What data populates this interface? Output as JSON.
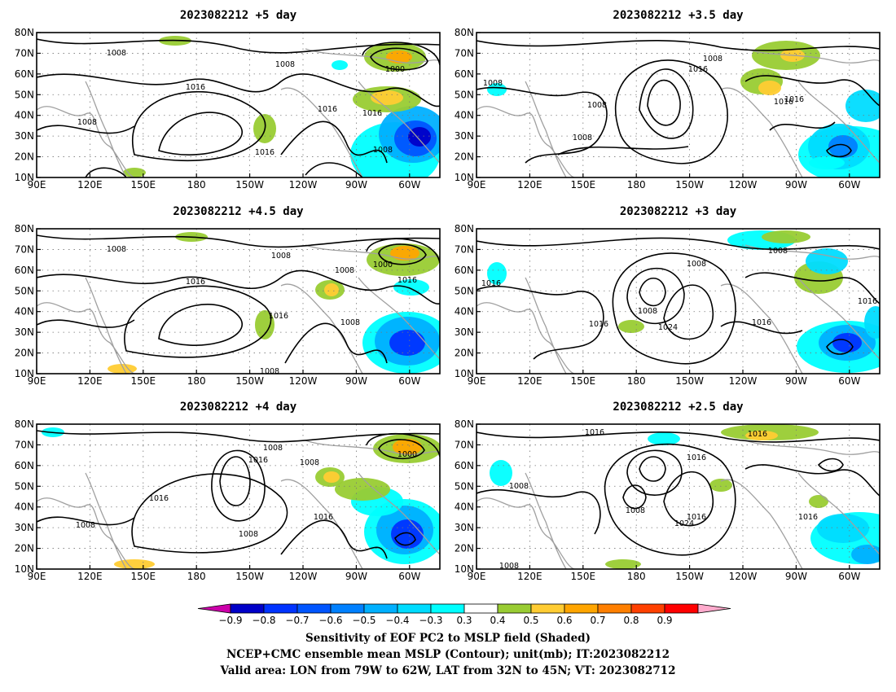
{
  "panels": [
    {
      "title": "2023082212 +5 day",
      "contour_labels": [
        "1008",
        "1008",
        "1016",
        "1000",
        "1016",
        "1016",
        "1008",
        "1016",
        "1008"
      ]
    },
    {
      "title": "2023082212 +3.5 day",
      "contour_labels": [
        "1008",
        "1008",
        "1016",
        "1016",
        "1008",
        "1008",
        "1016"
      ]
    },
    {
      "title": "2023082212 +4.5 day",
      "contour_labels": [
        "1008",
        "1008",
        "1016",
        "1008",
        "1000",
        "1016",
        "1016",
        "1008",
        "1008"
      ]
    },
    {
      "title": "2023082212 +3 day",
      "contour_labels": [
        "1008",
        "1016",
        "1008",
        "1008",
        "1016",
        "1024",
        "1016",
        "1016"
      ]
    },
    {
      "title": "2023082212 +4 day",
      "contour_labels": [
        "1008",
        "1016",
        "1008",
        "1016",
        "1008",
        "1000",
        "1016",
        "1008"
      ]
    },
    {
      "title": "2023082212 +2.5 day",
      "contour_labels": [
        "1016",
        "1008",
        "1016",
        "1016",
        "1008",
        "1024",
        "1016",
        "1016",
        "1008"
      ]
    }
  ],
  "y_ticks": [
    "80N",
    "70N",
    "60N",
    "50N",
    "40N",
    "30N",
    "20N",
    "10N"
  ],
  "x_ticks": [
    "90E",
    "120E",
    "150E",
    "180",
    "150W",
    "120W",
    "90W",
    "60W"
  ],
  "colorbar": {
    "labels": [
      "−0.9",
      "−0.8",
      "−0.7",
      "−0.6",
      "−0.5",
      "−0.4",
      "−0.3",
      "0.3",
      "0.4",
      "0.5",
      "0.6",
      "0.7",
      "0.8",
      "0.9"
    ],
    "colors": [
      "#0000c8",
      "#0033ff",
      "#0055ff",
      "#0080ff",
      "#00b0ff",
      "#00dcff",
      "#00ffff",
      "#ffffff",
      "#99cc33",
      "#ffcc33",
      "#ffa500",
      "#ff7f00",
      "#ff4000",
      "#ff0000"
    ],
    "low_end_color": "#cc00aa",
    "high_end_color": "#ffaacc"
  },
  "caption": {
    "line1": "Sensitivity of EOF PC2 to MSLP field (Shaded)",
    "line2": "NCEP+CMC ensemble mean MSLP (Contour); unit(mb); IT:2023082212",
    "line3": "Valid area: LON from 79W to 62W, LAT from 32N to 45N; VT: 2023082712"
  }
}
